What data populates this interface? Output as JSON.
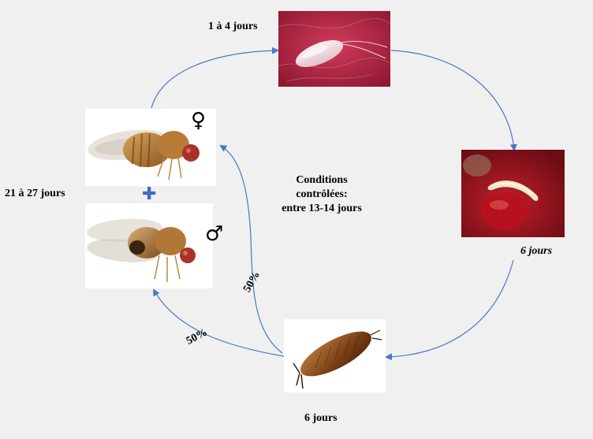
{
  "labels": {
    "egg_duration": "1 à 4 jours",
    "larva_duration": "6 jours",
    "pupa_duration": "6 jours",
    "adult_duration": "21 à 27 jours",
    "female_ratio": "50%",
    "male_ratio": "50%"
  },
  "center_note": {
    "line1": "Conditions",
    "line2": "contrôlées:",
    "line3": "entre 13-14 jours"
  },
  "symbols": {
    "female": "♀",
    "male": "♂",
    "plus": "✚"
  },
  "colors": {
    "arrow": "#4a78c0",
    "plus": "#3a6fc2"
  }
}
